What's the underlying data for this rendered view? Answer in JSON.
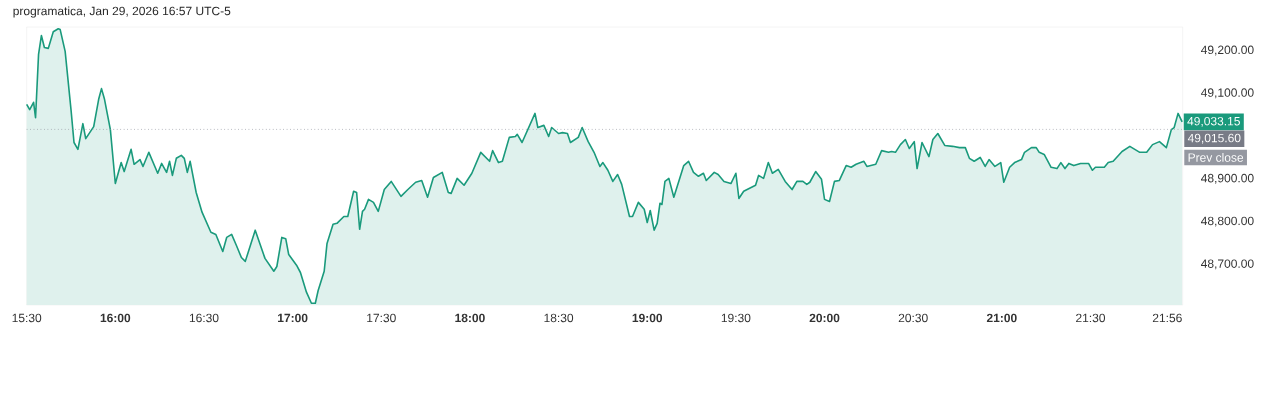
{
  "chart_data": {
    "type": "area",
    "title": "programatica, Jan 29, 2026 16:57 UTC-5",
    "color": "#1a9a7c",
    "x": [
      15.5,
      15.517,
      15.539,
      15.55,
      15.567,
      15.583,
      15.6,
      15.622,
      15.65,
      15.678,
      15.689,
      15.717,
      15.75,
      15.767,
      15.789,
      15.817,
      15.833,
      15.878,
      15.906,
      15.922,
      15.939,
      15.972,
      16.0,
      16.033,
      16.05,
      16.089,
      16.106,
      16.139,
      16.156,
      16.189,
      16.239,
      16.261,
      16.289,
      16.306,
      16.322,
      16.344,
      16.372,
      16.389,
      16.406,
      16.422,
      16.456,
      16.489,
      16.539,
      16.567,
      16.606,
      16.628,
      16.656,
      16.683,
      16.711,
      16.733,
      16.789,
      16.844,
      16.894,
      16.911,
      16.939,
      16.961,
      16.978,
      17.022,
      17.044,
      17.078,
      17.106,
      17.128,
      17.144,
      17.178,
      17.194,
      17.228,
      17.25,
      17.289,
      17.311,
      17.344,
      17.361,
      17.378,
      17.394,
      17.406,
      17.428,
      17.456,
      17.483,
      17.517,
      17.556,
      17.611,
      17.65,
      17.694,
      17.728,
      17.761,
      17.794,
      17.844,
      17.878,
      17.894,
      17.928,
      17.967,
      18.011,
      18.061,
      18.111,
      18.128,
      18.161,
      18.183,
      18.222,
      18.256,
      18.267,
      18.294,
      18.367,
      18.383,
      18.417,
      18.444,
      18.461,
      18.5,
      18.522,
      18.55,
      18.567,
      18.611,
      18.633,
      18.667,
      18.7,
      18.733,
      18.75,
      18.778,
      18.806,
      18.833,
      18.856,
      18.9,
      18.917,
      18.95,
      18.983,
      19.0,
      19.017,
      19.039,
      19.056,
      19.072,
      19.083,
      19.1,
      19.122,
      19.15,
      19.206,
      19.233,
      19.261,
      19.289,
      19.317,
      19.333,
      19.378,
      19.4,
      19.433,
      19.472,
      19.5,
      19.517,
      19.544,
      19.611,
      19.628,
      19.656,
      19.683,
      19.706,
      19.739,
      19.778,
      19.817,
      19.844,
      19.878,
      19.9,
      19.917,
      19.95,
      19.983,
      20.0,
      20.028,
      20.056,
      20.083,
      20.122,
      20.15,
      20.178,
      20.222,
      20.239,
      20.289,
      20.322,
      20.361,
      20.378,
      20.4,
      20.428,
      20.456,
      20.478,
      20.506,
      20.522,
      20.55,
      20.589,
      20.611,
      20.639,
      20.678,
      20.722,
      20.761,
      20.794,
      20.817,
      20.844,
      20.878,
      20.906,
      20.928,
      20.961,
      20.994,
      21.011,
      21.044,
      21.072,
      21.111,
      21.128,
      21.167,
      21.194,
      21.211,
      21.239,
      21.278,
      21.311,
      21.333,
      21.356,
      21.378,
      21.406,
      21.444,
      21.489,
      21.511,
      21.528,
      21.578,
      21.6,
      21.628,
      21.678,
      21.722,
      21.778,
      21.817,
      21.85,
      21.889,
      21.928,
      21.956,
      21.972,
      21.994,
      22.017
    ],
    "values": [
      49074,
      49062,
      49079,
      49043,
      49191,
      49235,
      49207,
      49205,
      49244,
      49251,
      49249,
      49198,
      49062,
      48985,
      48969,
      49029,
      48994,
      49022,
      49086,
      49111,
      49086,
      49015,
      48889,
      48938,
      48917,
      48969,
      48934,
      48945,
      48929,
      48962,
      48913,
      48936,
      48915,
      48941,
      48908,
      48948,
      48955,
      48948,
      48915,
      48941,
      48868,
      48822,
      48775,
      48770,
      48730,
      48763,
      48770,
      48744,
      48716,
      48707,
      48780,
      48714,
      48684,
      48695,
      48763,
      48760,
      48723,
      48698,
      48681,
      48635,
      48609,
      48609,
      48639,
      48684,
      48749,
      48794,
      48796,
      48812,
      48812,
      48871,
      48868,
      48782,
      48824,
      48829,
      48852,
      48845,
      48824,
      48875,
      48894,
      48859,
      48875,
      48892,
      48896,
      48857,
      48903,
      48915,
      48868,
      48866,
      48901,
      48885,
      48913,
      48962,
      48941,
      48966,
      48938,
      48941,
      48997,
      48999,
      49004,
      48985,
      49053,
      49020,
      49025,
      48999,
      49020,
      49006,
      49008,
      49006,
      48985,
      48997,
      49020,
      48987,
      48962,
      48929,
      48938,
      48920,
      48894,
      48910,
      48887,
      48812,
      48812,
      48845,
      48829,
      48798,
      48826,
      48780,
      48796,
      48843,
      48840,
      48894,
      48901,
      48857,
      48931,
      48941,
      48915,
      48906,
      48913,
      48896,
      48915,
      48910,
      48894,
      48889,
      48913,
      48854,
      48871,
      48885,
      48908,
      48901,
      48938,
      48913,
      48922,
      48894,
      48875,
      48894,
      48894,
      48887,
      48892,
      48917,
      48899,
      48852,
      48847,
      48894,
      48896,
      48931,
      48927,
      48934,
      48941,
      48929,
      48934,
      48966,
      48962,
      48964,
      48962,
      48980,
      48992,
      48971,
      48987,
      48924,
      48985,
      48952,
      48992,
      49006,
      48978,
      48976,
      48973,
      48973,
      48948,
      48941,
      48950,
      48929,
      48945,
      48929,
      48938,
      48892,
      48927,
      48938,
      48945,
      48962,
      48973,
      48973,
      48962,
      48957,
      48927,
      48924,
      48938,
      48924,
      48936,
      48931,
      48936,
      48936,
      48920,
      48927,
      48927,
      48938,
      48941,
      48964,
      48976,
      48962,
      48962,
      48980,
      48987,
      48973,
      49015,
      49020,
      49053,
      49033.15
    ],
    "value_labels": [
      null,
      null,
      null,
      null,
      null,
      null,
      null,
      null,
      null,
      null,
      null,
      null,
      null,
      null,
      null,
      null,
      null,
      null,
      null,
      null,
      null,
      null,
      null,
      null,
      null,
      null,
      null,
      null,
      null,
      null,
      null,
      null,
      null,
      null,
      null,
      null,
      null,
      null,
      null,
      null,
      null,
      null,
      null,
      null,
      null,
      null,
      null,
      null,
      null,
      null,
      null,
      null,
      null,
      null,
      null,
      null,
      null,
      null,
      null,
      null,
      null,
      null,
      null,
      null,
      null,
      null,
      null,
      null,
      null,
      null,
      null,
      null,
      null,
      null,
      null,
      null,
      null,
      null,
      null,
      null,
      null,
      null,
      null,
      null,
      null,
      null,
      null,
      null,
      null,
      null,
      null,
      null,
      null,
      null,
      null,
      null,
      null,
      null,
      null,
      null,
      null,
      null,
      null,
      null,
      null,
      null,
      null,
      null,
      null,
      null,
      null,
      null,
      null,
      null,
      null,
      null,
      null,
      null,
      null,
      null,
      null,
      null,
      null,
      null,
      null,
      null,
      null,
      null,
      null,
      null,
      null,
      null,
      null,
      null,
      null,
      null,
      null,
      null,
      null,
      null,
      null,
      null,
      null,
      null,
      null,
      null,
      null,
      null,
      null,
      null,
      null,
      null,
      null,
      null,
      null,
      null,
      null,
      null,
      null,
      null,
      null,
      null,
      null,
      null,
      null,
      null,
      null,
      null,
      null,
      null,
      null,
      null,
      null,
      null,
      null,
      null,
      null,
      null,
      null,
      null,
      null,
      null,
      null,
      null,
      null,
      null,
      null,
      null,
      null,
      null,
      null,
      null,
      null,
      null,
      null,
      null,
      null,
      null,
      null,
      null,
      null,
      null,
      null,
      null,
      null,
      null,
      null,
      null,
      null,
      null,
      null,
      null,
      null,
      null,
      null,
      null,
      null,
      null,
      null,
      null,
      null,
      null,
      null,
      null,
      null,
      "49,033.15"
    ],
    "xlim": [
      15.5,
      22.02
    ],
    "ylim": [
      48605,
      49255
    ],
    "xticks": [
      {
        "value": 15.5,
        "label": "15:30"
      },
      {
        "value": 16,
        "label": "16:00"
      },
      {
        "value": 16.5,
        "label": "16:30"
      },
      {
        "value": 17,
        "label": "17:00"
      },
      {
        "value": 17.5,
        "label": "17:30"
      },
      {
        "value": 18,
        "label": "18:00"
      },
      {
        "value": 18.5,
        "label": "18:30"
      },
      {
        "value": 19,
        "label": "19:00"
      },
      {
        "value": 19.5,
        "label": "19:30"
      },
      {
        "value": 20,
        "label": "20:00"
      },
      {
        "value": 20.5,
        "label": "20:30"
      },
      {
        "value": 21,
        "label": "21:00"
      },
      {
        "value": 21.5,
        "label": "21:30"
      },
      {
        "value": 21.9333,
        "label": "21:56"
      }
    ],
    "yticks": [
      {
        "value": 48700,
        "label": "48,700.00"
      },
      {
        "value": 48800,
        "label": "48,800.00"
      },
      {
        "value": 48900,
        "label": "48,900.00"
      },
      {
        "value": 49100,
        "label": "49,100.00"
      },
      {
        "value": 49200,
        "label": "49,200.00"
      }
    ],
    "ref_lines": [
      {
        "axis": "y",
        "value": 49015.6,
        "label": "Prev close",
        "color": "#9598a1",
        "line_style": "dotted"
      }
    ],
    "annotations": [
      "49,015.60"
    ]
  }
}
